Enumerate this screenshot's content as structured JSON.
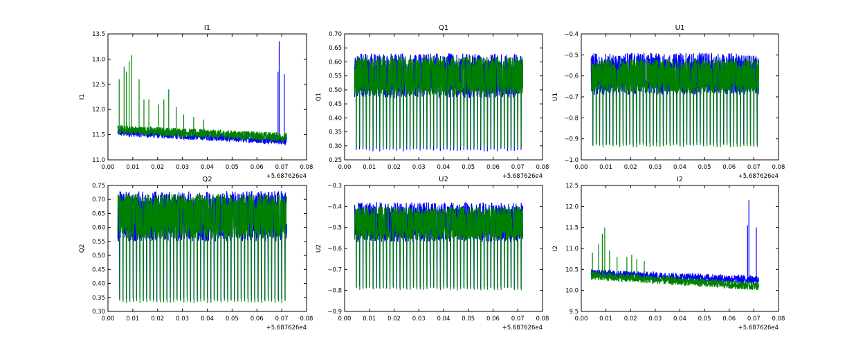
{
  "figure": {
    "title": "",
    "offset_label": "+5.687626e4",
    "series_colors": [
      "#0000ff",
      "#008000"
    ]
  },
  "chart_data": [
    {
      "type": "line",
      "title": "I1",
      "xlabel": "",
      "ylabel": "I1",
      "xlim": [
        0.0,
        0.08
      ],
      "ylim": [
        11.0,
        13.5
      ],
      "x_ticks": [
        "0.00",
        "0.01",
        "0.02",
        "0.03",
        "0.04",
        "0.05",
        "0.06",
        "0.07",
        "0.08"
      ],
      "y_ticks": [
        "11.0",
        "11.5",
        "12.0",
        "12.5",
        "13.0",
        "13.5"
      ],
      "x_offset_label": "+5.687626e4",
      "x_data_range": [
        0.004,
        0.072
      ],
      "series": [
        {
          "name": "blue",
          "color": "#0000ff",
          "base": 11.55,
          "noise": 0.08,
          "end_base": 11.38,
          "spikes": [
            [
              0.069,
              13.35
            ],
            [
              0.0685,
              12.75
            ],
            [
              0.071,
              12.7
            ]
          ]
        },
        {
          "name": "green",
          "color": "#008000",
          "base": 11.6,
          "noise": 0.09,
          "end_base": 11.45,
          "spikes": [
            [
              0.0045,
              12.6
            ],
            [
              0.0065,
              12.85
            ],
            [
              0.0075,
              12.75
            ],
            [
              0.0085,
              12.95
            ],
            [
              0.0095,
              13.08
            ],
            [
              0.0125,
              12.6
            ],
            [
              0.0145,
              12.2
            ],
            [
              0.0165,
              12.2
            ],
            [
              0.0205,
              12.1
            ],
            [
              0.0225,
              12.2
            ],
            [
              0.0245,
              12.4
            ],
            [
              0.0275,
              12.05
            ],
            [
              0.0305,
              11.9
            ],
            [
              0.0345,
              11.85
            ],
            [
              0.0385,
              11.8
            ]
          ]
        }
      ]
    },
    {
      "type": "line",
      "title": "Q1",
      "xlabel": "",
      "ylabel": "Q1",
      "xlim": [
        0.0,
        0.08
      ],
      "ylim": [
        0.25,
        0.7
      ],
      "x_ticks": [
        "0.00",
        "0.01",
        "0.02",
        "0.03",
        "0.04",
        "0.05",
        "0.06",
        "0.07",
        "0.08"
      ],
      "y_ticks": [
        "0.25",
        "0.30",
        "0.35",
        "0.40",
        "0.45",
        "0.50",
        "0.55",
        "0.60",
        "0.65",
        "0.70"
      ],
      "x_offset_label": "+5.687626e4",
      "x_data_range": [
        0.004,
        0.072
      ],
      "series": [
        {
          "name": "blue",
          "color": "#0000ff",
          "low": 0.47,
          "high": 0.63,
          "dips_to": 0.28
        },
        {
          "name": "green",
          "color": "#008000",
          "low": 0.48,
          "high": 0.62,
          "dips_to": 0.29
        }
      ]
    },
    {
      "type": "line",
      "title": "U1",
      "xlabel": "",
      "ylabel": "U1",
      "xlim": [
        0.0,
        0.08
      ],
      "ylim": [
        -1.0,
        -0.4
      ],
      "x_ticks": [
        "0.00",
        "0.01",
        "0.02",
        "0.03",
        "0.04",
        "0.05",
        "0.06",
        "0.07",
        "0.08"
      ],
      "y_ticks": [
        "−1.0",
        "−0.9",
        "−0.8",
        "−0.7",
        "−0.6",
        "−0.5",
        "−0.4"
      ],
      "x_offset_label": "+5.687626e4",
      "x_data_range": [
        0.004,
        0.072
      ],
      "series": [
        {
          "name": "blue",
          "color": "#0000ff",
          "low": -0.69,
          "high": -0.49,
          "dips_to": -0.93
        },
        {
          "name": "green",
          "color": "#008000",
          "low": -0.68,
          "high": -0.52,
          "dips_to": -0.94
        }
      ]
    },
    {
      "type": "line",
      "title": "Q2",
      "xlabel": "",
      "ylabel": "Q2",
      "xlim": [
        0.0,
        0.08
      ],
      "ylim": [
        0.3,
        0.75
      ],
      "x_ticks": [
        "0.00",
        "0.01",
        "0.02",
        "0.03",
        "0.04",
        "0.05",
        "0.06",
        "0.07",
        "0.08"
      ],
      "y_ticks": [
        "0.30",
        "0.35",
        "0.40",
        "0.45",
        "0.50",
        "0.55",
        "0.60",
        "0.65",
        "0.70",
        "0.75"
      ],
      "x_offset_label": "+5.687626e4",
      "x_data_range": [
        0.004,
        0.072
      ],
      "series": [
        {
          "name": "blue",
          "color": "#0000ff",
          "low": 0.55,
          "high": 0.73,
          "dips_to": 0.34
        },
        {
          "name": "green",
          "color": "#008000",
          "low": 0.56,
          "high": 0.72,
          "dips_to": 0.33
        }
      ]
    },
    {
      "type": "line",
      "title": "U2",
      "xlabel": "",
      "ylabel": "U2",
      "xlim": [
        0.0,
        0.08
      ],
      "ylim": [
        -0.9,
        -0.3
      ],
      "x_ticks": [
        "0.00",
        "0.01",
        "0.02",
        "0.03",
        "0.04",
        "0.05",
        "0.06",
        "0.07",
        "0.08"
      ],
      "y_ticks": [
        "−0.9",
        "−0.8",
        "−0.7",
        "−0.6",
        "−0.5",
        "−0.4",
        "−0.3"
      ],
      "x_offset_label": "+5.687626e4",
      "x_data_range": [
        0.004,
        0.072
      ],
      "series": [
        {
          "name": "blue",
          "color": "#0000ff",
          "low": -0.57,
          "high": -0.38,
          "dips_to": -0.79
        },
        {
          "name": "green",
          "color": "#008000",
          "low": -0.56,
          "high": -0.4,
          "dips_to": -0.8
        }
      ]
    },
    {
      "type": "line",
      "title": "I2",
      "xlabel": "",
      "ylabel": "I2",
      "xlim": [
        0.0,
        0.08
      ],
      "ylim": [
        9.5,
        12.5
      ],
      "x_ticks": [
        "0.00",
        "0.01",
        "0.02",
        "0.03",
        "0.04",
        "0.05",
        "0.06",
        "0.07",
        "0.08"
      ],
      "y_ticks": [
        "9.5",
        "10.0",
        "10.5",
        "11.0",
        "11.5",
        "12.0",
        "12.5"
      ],
      "x_offset_label": "+5.687626e4",
      "x_data_range": [
        0.004,
        0.072
      ],
      "series": [
        {
          "name": "blue",
          "color": "#0000ff",
          "base": 10.4,
          "noise": 0.1,
          "end_base": 10.25,
          "spikes": [
            [
              0.068,
              12.15
            ],
            [
              0.0675,
              11.55
            ],
            [
              0.071,
              11.5
            ]
          ]
        },
        {
          "name": "green",
          "color": "#008000",
          "base": 10.35,
          "noise": 0.1,
          "end_base": 10.1,
          "spikes": [
            [
              0.0045,
              10.9
            ],
            [
              0.007,
              11.1
            ],
            [
              0.0085,
              11.35
            ],
            [
              0.0095,
              11.5
            ],
            [
              0.0115,
              10.95
            ],
            [
              0.0145,
              10.8
            ],
            [
              0.0185,
              10.8
            ],
            [
              0.0205,
              10.85
            ],
            [
              0.0225,
              10.75
            ],
            [
              0.0255,
              10.7
            ]
          ]
        }
      ]
    }
  ]
}
